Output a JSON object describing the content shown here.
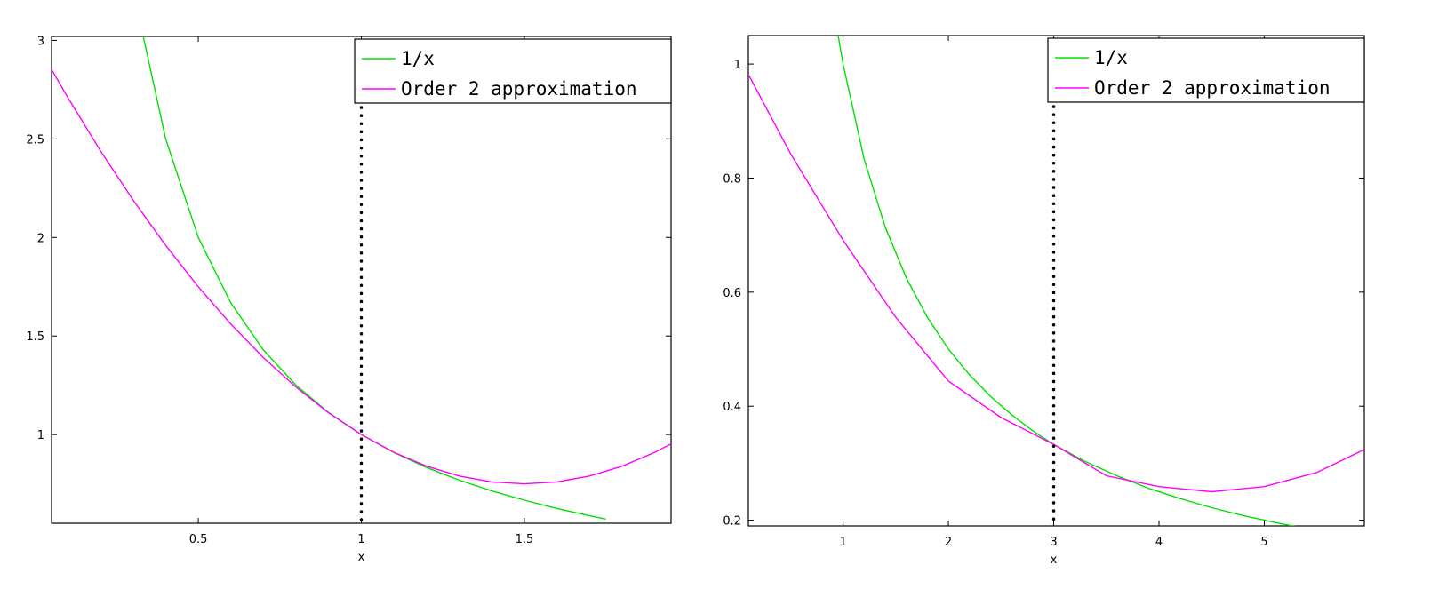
{
  "chart_data": [
    {
      "type": "line",
      "title": "",
      "xlabel": "x",
      "ylabel": "",
      "xlim": [
        0.05,
        1.95
      ],
      "ylim": [
        0.55,
        3.02
      ],
      "xticks": [
        0.5,
        1,
        1.5
      ],
      "xtick_labels": [
        "0.5",
        "1",
        "1.5"
      ],
      "yticks": [
        1,
        1.5,
        2,
        2.5,
        3
      ],
      "ytick_labels": [
        "1",
        "1.5",
        "2",
        "2.5",
        "3"
      ],
      "expansion_point": 1,
      "legend": {
        "placement": "top-right"
      },
      "grid": false,
      "series": [
        {
          "name": "1/x",
          "color": "#00e000",
          "x": [
            0.33,
            0.4,
            0.5,
            0.6,
            0.7,
            0.8,
            0.9,
            1.0,
            1.1,
            1.2,
            1.3,
            1.4,
            1.5,
            1.6,
            1.7,
            1.75
          ],
          "y": [
            3.03,
            2.5,
            2.0,
            1.667,
            1.429,
            1.25,
            1.111,
            1.0,
            0.909,
            0.833,
            0.769,
            0.714,
            0.667,
            0.625,
            0.588,
            0.571
          ]
        },
        {
          "name": "Order 2 approximation",
          "color": "#ff00ff",
          "x": [
            0.05,
            0.1,
            0.2,
            0.3,
            0.4,
            0.5,
            0.6,
            0.7,
            0.8,
            0.9,
            1.0,
            1.1,
            1.2,
            1.3,
            1.4,
            1.5,
            1.6,
            1.7,
            1.8,
            1.9,
            1.95
          ],
          "y": [
            2.853,
            2.71,
            2.44,
            2.19,
            1.96,
            1.75,
            1.56,
            1.39,
            1.24,
            1.11,
            1.0,
            0.91,
            0.84,
            0.79,
            0.76,
            0.75,
            0.76,
            0.79,
            0.84,
            0.91,
            0.953
          ]
        }
      ]
    },
    {
      "type": "line",
      "title": "",
      "xlabel": "x",
      "ylabel": "",
      "xlim": [
        0.1,
        5.95
      ],
      "ylim": [
        0.19,
        1.05
      ],
      "xticks": [
        1,
        2,
        3,
        4,
        5
      ],
      "xtick_labels": [
        "1",
        "2",
        "3",
        "4",
        "5"
      ],
      "yticks": [
        0.2,
        0.4,
        0.6,
        0.8,
        1
      ],
      "ytick_labels": [
        "0.2",
        "0.4",
        "0.6",
        "0.8",
        "1"
      ],
      "expansion_point": 3,
      "legend": {
        "placement": "top-right"
      },
      "grid": false,
      "series": [
        {
          "name": "1/x",
          "color": "#00e000",
          "x": [
            0.95,
            1.0,
            1.2,
            1.4,
            1.6,
            1.8,
            2.0,
            2.2,
            2.4,
            2.6,
            2.8,
            3.0,
            3.3,
            3.6,
            3.9,
            4.2,
            4.5,
            4.8,
            5.1,
            5.35
          ],
          "y": [
            1.053,
            1.0,
            0.833,
            0.714,
            0.625,
            0.556,
            0.5,
            0.455,
            0.417,
            0.385,
            0.357,
            0.333,
            0.303,
            0.278,
            0.256,
            0.238,
            0.222,
            0.208,
            0.196,
            0.187
          ]
        },
        {
          "name": "Order 2 approximation",
          "color": "#ff00ff",
          "x": [
            0.1,
            0.5,
            1.0,
            1.5,
            2.0,
            2.5,
            3.0,
            3.5,
            4.0,
            4.5,
            5.0,
            5.5,
            5.95
          ],
          "y": [
            0.982,
            0.843,
            0.691,
            0.556,
            0.444,
            0.38,
            0.333,
            0.278,
            0.259,
            0.25,
            0.259,
            0.284,
            0.324
          ]
        }
      ]
    }
  ]
}
